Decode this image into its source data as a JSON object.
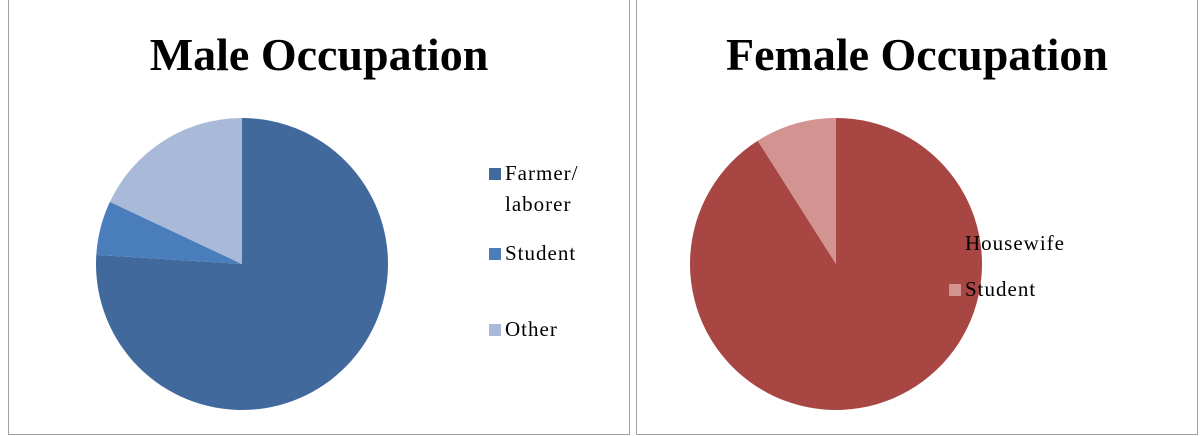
{
  "chart_data": [
    {
      "type": "pie",
      "title": "Male Occupation",
      "categories": [
        "Farmer/ laborer",
        "Student",
        "Other"
      ],
      "values": [
        76,
        6,
        18
      ],
      "colors": [
        "#41699b",
        "#4a7dbb",
        "#a9b9d8"
      ]
    },
    {
      "type": "pie",
      "title": "Female Occupation",
      "categories": [
        "Housewife",
        "Student"
      ],
      "values": [
        91,
        9
      ],
      "colors": [
        "#a84644",
        "#d39391"
      ]
    }
  ]
}
